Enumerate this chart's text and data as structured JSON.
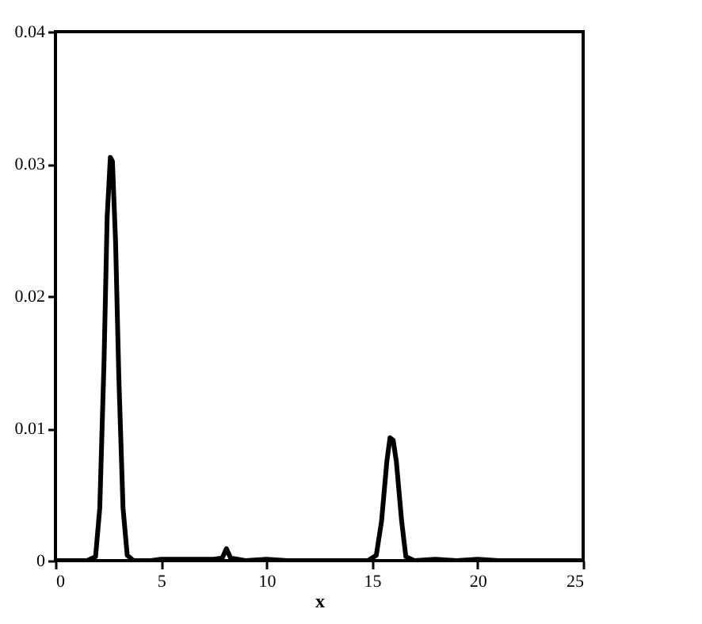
{
  "chart_data": {
    "type": "line",
    "xlabel": "x",
    "xlim": [
      0,
      25
    ],
    "ylim": [
      0,
      0.04
    ],
    "xticks": [
      0,
      5,
      10,
      15,
      20,
      25
    ],
    "yticks": [
      0,
      0.01,
      0.02,
      0.03,
      0.04
    ],
    "grid": false,
    "marker": "none",
    "line_style": "solid",
    "series": [
      {
        "color": "#000000",
        "x": [
          0,
          0.5,
          1,
          1.5,
          1.9,
          2.1,
          2.3,
          2.45,
          2.6,
          2.7,
          2.85,
          3.0,
          3.2,
          3.4,
          3.7,
          4.5,
          5,
          5.5,
          6.5,
          7.5,
          7.9,
          8.1,
          8.3,
          9,
          10,
          11,
          12,
          13,
          14,
          14.8,
          15.2,
          15.45,
          15.7,
          15.85,
          16.0,
          16.15,
          16.4,
          16.6,
          17,
          18,
          19,
          20,
          21,
          22,
          23,
          24,
          25
        ],
        "values": [
          0,
          0,
          0,
          0,
          0.0003,
          0.004,
          0.015,
          0.026,
          0.0305,
          0.0302,
          0.024,
          0.014,
          0.004,
          0.0004,
          0,
          0,
          0.0001,
          0.0001,
          0.0001,
          0.0001,
          0.0002,
          0.0009,
          0.0002,
          0,
          0.0001,
          0,
          0,
          0,
          0,
          0,
          0.0004,
          0.003,
          0.0075,
          0.0093,
          0.0091,
          0.0075,
          0.003,
          0.0003,
          0,
          0.0001,
          0,
          0.0001,
          0,
          0,
          0,
          0,
          0
        ]
      }
    ]
  }
}
